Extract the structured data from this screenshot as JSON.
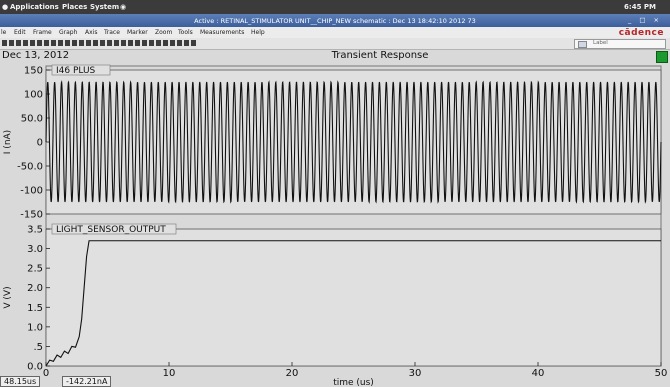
{
  "topbar": {
    "menus": [
      "Applications",
      "Places",
      "System"
    ],
    "time": "6:45 PM"
  },
  "window": {
    "title": "Active : RETINAL_STIMULATOR UNIT__CHIP_NEW schematic : Dec 13 18:42:10 2012 73",
    "controls": "_ □ ×"
  },
  "menubar": {
    "items": [
      "le",
      "Edit",
      "Frame",
      "Graph",
      "Axis",
      "Trace",
      "Marker",
      "Zoom",
      "Tools",
      "Measurements",
      "Help"
    ],
    "brand": "cādence"
  },
  "toolbar": {
    "label_placeholder": "Label"
  },
  "plot_header": {
    "date": "Dec 13, 2012",
    "title": "Transient Response"
  },
  "chart_data": [
    {
      "type": "line",
      "title": "",
      "legend": "I46 PLUS",
      "ylabel": "I (nA)",
      "xlabel": "",
      "xlim": [
        0,
        50
      ],
      "ylim": [
        -150,
        150
      ],
      "yticks": [
        "150",
        "100",
        "50.0",
        "0",
        "-50.0",
        "-100",
        "-150"
      ],
      "series": [
        {
          "name": "I46 PLUS",
          "waveform": "sinusoid",
          "amplitude": 125,
          "offset": 0,
          "cycles": 89
        }
      ]
    },
    {
      "type": "line",
      "title": "",
      "legend": "LIGHT_SENSOR_OUTPUT",
      "ylabel": "V (V)",
      "xlabel": "time (us)",
      "xlim": [
        0,
        50
      ],
      "ylim": [
        0,
        3.5
      ],
      "yticks": [
        "3.5",
        "3.0",
        "2.5",
        "2.0",
        "1.5",
        "1.0",
        ".5",
        "0.0"
      ],
      "xticks": [
        "0",
        "10",
        "20",
        "30",
        "40",
        "50"
      ],
      "series": [
        {
          "name": "LIGHT_SENSOR_OUTPUT",
          "x": [
            0,
            0.3,
            0.6,
            0.9,
            1.2,
            1.5,
            1.8,
            2.1,
            2.4,
            2.7,
            2.9,
            3.1,
            3.3,
            3.5,
            50
          ],
          "y": [
            0.0,
            0.15,
            0.12,
            0.28,
            0.22,
            0.38,
            0.32,
            0.5,
            0.48,
            0.75,
            1.2,
            2.0,
            2.8,
            3.2,
            3.2
          ]
        }
      ]
    }
  ],
  "readouts": {
    "cursor_x": "48.15us",
    "cursor_y": "-142.21nA"
  }
}
